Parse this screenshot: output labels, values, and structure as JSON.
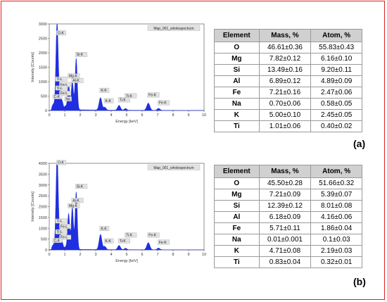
{
  "chart_data": [
    {
      "type": "bar",
      "panel_label": "(a)",
      "title": "Map_001_wholespectrum",
      "xlabel": "Energy [keV]",
      "ylabel": "Intensity [Counts]",
      "xlim": [
        0,
        10
      ],
      "ylim": [
        0,
        3000
      ],
      "xticks": [
        "0",
        "1",
        "2",
        "3",
        "4",
        "5",
        "6",
        "7",
        "8",
        "9",
        "10"
      ],
      "yticks": [
        "0",
        "500",
        "1000",
        "1500",
        "2000",
        "2500",
        "3000"
      ],
      "bar_color": "#1f2ee0",
      "peaks": [
        {
          "x": 0.27,
          "y": 180,
          "w": 0.08
        },
        {
          "x": 0.45,
          "y": 800,
          "w": 0.06
        },
        {
          "x": 0.52,
          "y": 2550,
          "w": 0.07
        },
        {
          "x": 0.7,
          "y": 550,
          "w": 0.07
        },
        {
          "x": 0.85,
          "y": 230,
          "w": 0.06
        },
        {
          "x": 1.04,
          "y": 120,
          "w": 0.06
        },
        {
          "x": 1.25,
          "y": 880,
          "w": 0.07
        },
        {
          "x": 1.49,
          "y": 980,
          "w": 0.07
        },
        {
          "x": 1.74,
          "y": 1780,
          "w": 0.07
        },
        {
          "x": 3.31,
          "y": 430,
          "w": 0.09
        },
        {
          "x": 3.59,
          "y": 100,
          "w": 0.08
        },
        {
          "x": 4.51,
          "y": 170,
          "w": 0.09
        },
        {
          "x": 4.93,
          "y": 60,
          "w": 0.08
        },
        {
          "x": 6.4,
          "y": 250,
          "w": 0.1
        },
        {
          "x": 7.06,
          "y": 70,
          "w": 0.09
        }
      ],
      "labels": [
        {
          "text": "O-K",
          "x": 0.52,
          "y": 2550
        },
        {
          "text": "Si-K",
          "x": 1.74,
          "y": 1800
        },
        {
          "text": "Mg-K",
          "x": 1.25,
          "y": 1060
        },
        {
          "text": "Al-K",
          "x": 1.49,
          "y": 900
        },
        {
          "text": "Ti-L",
          "x": 0.45,
          "y": 950
        },
        {
          "text": "Fe-L",
          "x": 0.7,
          "y": 760
        },
        {
          "text": "Ti-L",
          "x": 0.45,
          "y": 640
        },
        {
          "text": "Fe-L",
          "x": 0.7,
          "y": 460
        },
        {
          "text": "Na",
          "x": 1.04,
          "y": 260
        },
        {
          "text": "C-K",
          "x": 0.27,
          "y": 340
        },
        {
          "text": "K-K",
          "x": 3.31,
          "y": 560
        },
        {
          "text": "K-K",
          "x": 3.59,
          "y": 200
        },
        {
          "text": "Ti-K",
          "x": 4.93,
          "y": 370
        },
        {
          "text": "Ti-K",
          "x": 4.51,
          "y": 230
        },
        {
          "text": "Fe-K",
          "x": 6.4,
          "y": 400
        },
        {
          "text": "Fe-K",
          "x": 7.06,
          "y": 130
        }
      ]
    },
    {
      "type": "bar",
      "panel_label": "(b)",
      "title": "Map_001_wholespectrum",
      "xlabel": "Energy [keV]",
      "ylabel": "Intensity [Counts]",
      "xlim": [
        0,
        10
      ],
      "ylim": [
        0,
        4000
      ],
      "xticks": [
        "0",
        "1",
        "2",
        "3",
        "4",
        "5",
        "6",
        "7",
        "8",
        "9",
        "10"
      ],
      "yticks": [
        "0",
        "500",
        "1000",
        "1500",
        "2000",
        "2500",
        "3000",
        "3500",
        "4000"
      ],
      "bar_color": "#1f2ee0",
      "peaks": [
        {
          "x": 0.27,
          "y": 200,
          "w": 0.08
        },
        {
          "x": 0.45,
          "y": 900,
          "w": 0.06
        },
        {
          "x": 0.52,
          "y": 3850,
          "w": 0.07
        },
        {
          "x": 0.7,
          "y": 650,
          "w": 0.07
        },
        {
          "x": 0.85,
          "y": 260,
          "w": 0.06
        },
        {
          "x": 1.04,
          "y": 100,
          "w": 0.06
        },
        {
          "x": 1.25,
          "y": 1650,
          "w": 0.07
        },
        {
          "x": 1.49,
          "y": 1950,
          "w": 0.07
        },
        {
          "x": 1.74,
          "y": 2650,
          "w": 0.07
        },
        {
          "x": 3.31,
          "y": 700,
          "w": 0.09
        },
        {
          "x": 3.59,
          "y": 150,
          "w": 0.08
        },
        {
          "x": 4.51,
          "y": 200,
          "w": 0.09
        },
        {
          "x": 4.93,
          "y": 70,
          "w": 0.08
        },
        {
          "x": 6.4,
          "y": 330,
          "w": 0.1
        },
        {
          "x": 7.06,
          "y": 80,
          "w": 0.09
        }
      ],
      "labels": [
        {
          "text": "O-K",
          "x": 0.52,
          "y": 3850
        },
        {
          "text": "Si-K",
          "x": 1.74,
          "y": 2750
        },
        {
          "text": "Al-K",
          "x": 1.49,
          "y": 2100
        },
        {
          "text": "Mg-K",
          "x": 1.25,
          "y": 1850
        },
        {
          "text": "Ti-L",
          "x": 0.45,
          "y": 1150
        },
        {
          "text": "Fe-L",
          "x": 0.7,
          "y": 900
        },
        {
          "text": "Ti-L",
          "x": 0.45,
          "y": 650
        },
        {
          "text": "Fe-L",
          "x": 0.7,
          "y": 400
        },
        {
          "text": "C-K",
          "x": 0.27,
          "y": 250
        },
        {
          "text": "K-K",
          "x": 3.31,
          "y": 800
        },
        {
          "text": "K-K",
          "x": 3.59,
          "y": 230
        },
        {
          "text": "Ti-K",
          "x": 4.93,
          "y": 500
        },
        {
          "text": "Ti-K",
          "x": 4.51,
          "y": 230
        },
        {
          "text": "Fe-K",
          "x": 6.4,
          "y": 500
        },
        {
          "text": "Fe-K",
          "x": 7.06,
          "y": 170
        }
      ]
    }
  ],
  "tables": {
    "a": {
      "headers": [
        "Element",
        "Mass, %",
        "Atom, %"
      ],
      "rows": [
        [
          "O",
          "46.61±0.36",
          "55.83±0.43"
        ],
        [
          "Mg",
          "7.82±0.12",
          "6.16±0.10"
        ],
        [
          "Si",
          "13.49±0.16",
          "9.20±0.11"
        ],
        [
          "Al",
          "6.89±0.12",
          "4.89±0.09"
        ],
        [
          "Fe",
          "7.21±0.16",
          "2.47±0.06"
        ],
        [
          "Na",
          "0.70±0.06",
          "0.58±0.05"
        ],
        [
          "K",
          "5.00±0.10",
          "2.45±0.05"
        ],
        [
          "Ti",
          "1.01±0.06",
          "0.40±0.02"
        ]
      ]
    },
    "b": {
      "headers": [
        "Element",
        "Mass, %",
        "Atom, %"
      ],
      "rows": [
        [
          "O",
          "45.50±0.28",
          "51.66±0.32"
        ],
        [
          "Mg",
          "7.21±0.09",
          "5.39±0.07"
        ],
        [
          "Si",
          "12.39±0.12",
          "8.01±0.08"
        ],
        [
          "Al",
          "6.18±0.09",
          "4.16±0.06"
        ],
        [
          "Fe",
          "5.71±0.11",
          "1.86±0.04"
        ],
        [
          "Na",
          "0.01±0.001",
          "0.1±0.03"
        ],
        [
          "K",
          "4.71±0.08",
          "2.19±0.03"
        ],
        [
          "Ti",
          "0.83±0.04",
          "0.32±0.01"
        ]
      ]
    }
  },
  "panel_labels": {
    "a": "(a)",
    "b": "(b)"
  }
}
